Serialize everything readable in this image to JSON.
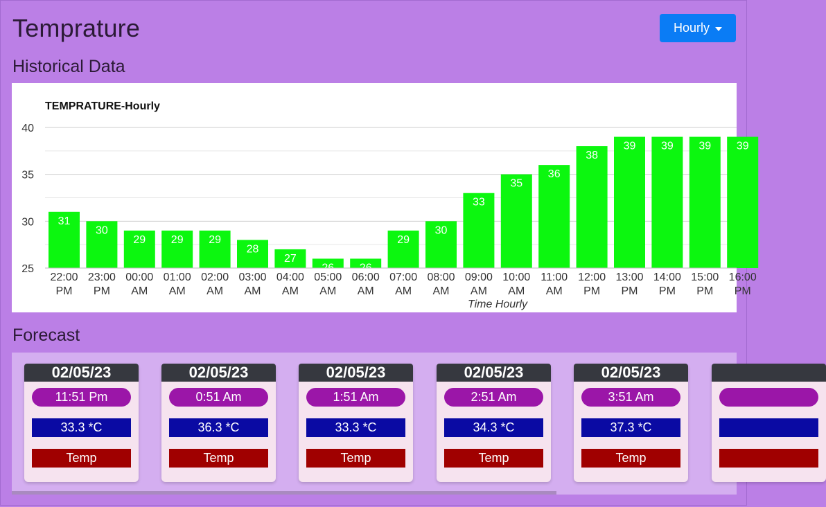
{
  "header": {
    "title": "Temprature",
    "dropdown_label": "Hourly"
  },
  "sections": {
    "historical": "Historical Data",
    "forecast": "Forecast"
  },
  "colors": {
    "bar": "#0cf70f",
    "background": "#bb7fe6",
    "dropdown": "#0a7cf5"
  },
  "chart_data": {
    "type": "bar",
    "title": "TEMPRATURE-Hourly",
    "xlabel": "Time Hourly",
    "ylabel": "",
    "ylim": [
      25,
      40
    ],
    "yticks": [
      25,
      30,
      35,
      40
    ],
    "grid": true,
    "categories": [
      [
        "22:00",
        "PM"
      ],
      [
        "23:00",
        "PM"
      ],
      [
        "00:00",
        "AM"
      ],
      [
        "01:00",
        "AM"
      ],
      [
        "02:00",
        "AM"
      ],
      [
        "03:00",
        "AM"
      ],
      [
        "04:00",
        "AM"
      ],
      [
        "05:00",
        "AM"
      ],
      [
        "06:00",
        "AM"
      ],
      [
        "07:00",
        "AM"
      ],
      [
        "08:00",
        "AM"
      ],
      [
        "09:00",
        "AM"
      ],
      [
        "10:00",
        "AM"
      ],
      [
        "11:00",
        "AM"
      ],
      [
        "12:00",
        "PM"
      ],
      [
        "13:00",
        "PM"
      ],
      [
        "14:00",
        "PM"
      ],
      [
        "15:00",
        "PM"
      ],
      [
        "16:00",
        "PM"
      ]
    ],
    "values": [
      31,
      30,
      29,
      29,
      29,
      28,
      27,
      26,
      26,
      29,
      30,
      33,
      35,
      36,
      38,
      39,
      39,
      39,
      39
    ]
  },
  "forecast": [
    {
      "date": "02/05/23",
      "time": "11:51 Pm",
      "temp": "33.3 *C",
      "label": "Temp"
    },
    {
      "date": "02/05/23",
      "time": "0:51 Am",
      "temp": "36.3 *C",
      "label": "Temp"
    },
    {
      "date": "02/05/23",
      "time": "1:51 Am",
      "temp": "33.3 *C",
      "label": "Temp"
    },
    {
      "date": "02/05/23",
      "time": "2:51 Am",
      "temp": "34.3 *C",
      "label": "Temp"
    },
    {
      "date": "02/05/23",
      "time": "3:51 Am",
      "temp": "37.3 *C",
      "label": "Temp"
    },
    {
      "date": "",
      "time": "",
      "temp": "",
      "label": ""
    }
  ]
}
